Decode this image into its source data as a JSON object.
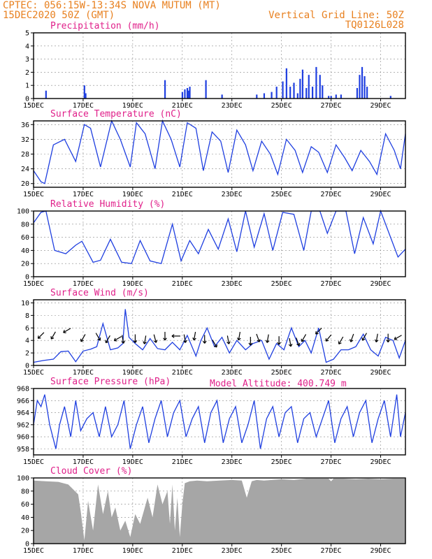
{
  "header": {
    "line1": "CPTEC:   056:15W-13:34S  NOVA MUTUM (MT)",
    "line2": "15DEC2020 50Z (GMT)",
    "grid_note": "Vertical Grid Line: 50Z",
    "code": "TQ0126L028",
    "model_altitude": "Model Altitude: 400.749 m"
  },
  "x_ticks": [
    "15DEC",
    "17DEC",
    "19DEC",
    "21DEC",
    "23DEC",
    "25DEC",
    "27DEC",
    "29DEC"
  ],
  "colors": {
    "line": "#1f3fe0",
    "cloud": "#a6a6a6",
    "title": "#e0208a",
    "header": "#e8801f"
  },
  "chart_data": [
    {
      "type": "bar",
      "title": "Precipitation (mm/h)",
      "x_range_days": [
        0,
        15
      ],
      "ylim": [
        0,
        5
      ],
      "y_ticks": [
        0,
        1,
        2,
        3,
        4,
        5
      ],
      "x": [
        0.5,
        2.05,
        2.1,
        5.3,
        6.0,
        6.1,
        6.2,
        6.25,
        6.3,
        6.95,
        7.6,
        9.0,
        9.3,
        9.6,
        9.8,
        10.05,
        10.2,
        10.35,
        10.5,
        10.65,
        10.75,
        10.85,
        11.0,
        11.1,
        11.25,
        11.4,
        11.55,
        11.65,
        11.9,
        12.0,
        12.2,
        12.4,
        13.05,
        13.15,
        13.25,
        13.35,
        13.45,
        14.4
      ],
      "values": [
        0.6,
        1.0,
        0.4,
        1.4,
        0.5,
        0.7,
        0.8,
        0.6,
        0.9,
        1.4,
        0.3,
        0.3,
        0.4,
        0.5,
        0.9,
        1.3,
        2.3,
        0.9,
        1.2,
        0.4,
        1.5,
        2.2,
        0.8,
        1.8,
        0.9,
        2.4,
        1.8,
        1.0,
        0.2,
        0.2,
        0.3,
        0.3,
        0.8,
        1.8,
        2.4,
        1.7,
        0.9,
        0.2
      ]
    },
    {
      "type": "line",
      "title": "Surface Temperature (nC)",
      "x_range_days": [
        0,
        15
      ],
      "ylim": [
        19,
        37
      ],
      "y_ticks": [
        20,
        24,
        28,
        32,
        36
      ],
      "x": [
        0,
        0.3,
        0.45,
        0.8,
        1.25,
        1.7,
        2.05,
        2.3,
        2.7,
        3.15,
        3.5,
        3.9,
        4.15,
        4.5,
        4.9,
        5.2,
        5.55,
        5.9,
        6.2,
        6.55,
        6.85,
        7.2,
        7.55,
        7.85,
        8.2,
        8.55,
        8.85,
        9.2,
        9.55,
        9.85,
        10.2,
        10.55,
        10.85,
        11.2,
        11.5,
        11.85,
        12.2,
        12.55,
        12.85,
        13.2,
        13.55,
        13.85,
        14.2,
        14.55,
        14.8,
        15
      ],
      "values": [
        23.5,
        20.5,
        20.0,
        30.5,
        32.0,
        26.0,
        36.0,
        35.0,
        24.5,
        37.0,
        32.0,
        24.5,
        36.5,
        33.5,
        24.0,
        37.0,
        32.0,
        24.5,
        36.5,
        35.0,
        23.5,
        34.0,
        31.5,
        23.0,
        34.5,
        30.5,
        23.5,
        31.5,
        28.0,
        22.5,
        32.0,
        29.0,
        23.0,
        30.0,
        28.5,
        23.0,
        30.5,
        27.0,
        23.5,
        29.0,
        26.0,
        22.5,
        33.5,
        29.0,
        24.0,
        33.5
      ]
    },
    {
      "type": "line",
      "title": "Relative Humidity (%)",
      "x_range_days": [
        0,
        15
      ],
      "ylim": [
        0,
        100
      ],
      "y_ticks": [
        0,
        20,
        40,
        60,
        80,
        100
      ],
      "x": [
        0,
        0.3,
        0.5,
        0.85,
        1.3,
        1.7,
        1.95,
        2.4,
        2.7,
        3.1,
        3.55,
        3.95,
        4.3,
        4.7,
        5.15,
        5.6,
        5.95,
        6.3,
        6.65,
        7.05,
        7.45,
        7.85,
        8.2,
        8.55,
        8.9,
        9.3,
        9.65,
        10.05,
        10.5,
        10.9,
        11.2,
        11.55,
        11.85,
        12.2,
        12.6,
        12.95,
        13.3,
        13.7,
        14.0,
        14.4,
        14.7,
        15
      ],
      "values": [
        82,
        98,
        100,
        40,
        35,
        48,
        54,
        22,
        25,
        57,
        22,
        20,
        55,
        24,
        20,
        80,
        24,
        55,
        35,
        72,
        42,
        88,
        38,
        100,
        45,
        96,
        40,
        98,
        95,
        40,
        100,
        100,
        66,
        100,
        100,
        35,
        90,
        50,
        100,
        60,
        30,
        42
      ]
    },
    {
      "type": "line",
      "title": "Surface Wind (m/s)",
      "x_range_days": [
        0,
        15
      ],
      "ylim": [
        0,
        10.5
      ],
      "y_ticks": [
        0,
        2,
        4,
        6,
        8,
        10
      ],
      "x": [
        0,
        0.4,
        0.8,
        1.1,
        1.4,
        1.7,
        2.0,
        2.3,
        2.55,
        2.8,
        3.1,
        3.4,
        3.6,
        3.7,
        3.85,
        4.1,
        4.4,
        4.7,
        5.0,
        5.3,
        5.6,
        5.9,
        6.2,
        6.55,
        6.75,
        7.0,
        7.3,
        7.6,
        7.9,
        8.2,
        8.55,
        8.85,
        9.2,
        9.5,
        9.8,
        10.1,
        10.4,
        10.7,
        10.95,
        11.2,
        11.5,
        11.8,
        12.1,
        12.4,
        12.7,
        13.0,
        13.3,
        13.6,
        13.9,
        14.2,
        14.5,
        14.75,
        15
      ],
      "values": [
        0.5,
        0.8,
        1.0,
        2.2,
        2.3,
        0.6,
        2.3,
        2.6,
        3.0,
        6.7,
        2.5,
        2.8,
        3.5,
        9.0,
        4.5,
        3.5,
        2.5,
        4.3,
        2.7,
        2.5,
        3.7,
        2.5,
        4.8,
        1.5,
        4.0,
        6.0,
        3.0,
        4.5,
        2.0,
        4.0,
        2.5,
        3.5,
        4.0,
        1.0,
        3.5,
        2.5,
        6.0,
        3.0,
        4.0,
        2.0,
        6.0,
        0.5,
        1.0,
        2.5,
        2.5,
        3.0,
        5.0,
        2.5,
        1.5,
        4.5,
        4.0,
        1.2,
        4.0
      ],
      "arrows_x": [
        0.3,
        0.8,
        1.35,
        2.0,
        2.6,
        3.0,
        3.4,
        3.6,
        4.1,
        4.5,
        4.9,
        5.3,
        5.75,
        6.1,
        6.5,
        6.9,
        7.3,
        7.85,
        8.3,
        8.75,
        9.05,
        9.45,
        9.9,
        10.35,
        10.65,
        10.9,
        11.5,
        11.9,
        12.4,
        12.85,
        13.35,
        13.85,
        14.3,
        14.7
      ],
      "arrows_y": [
        4.8,
        4.8,
        5.6,
        4.4,
        4.6,
        4.2,
        4.3,
        4.2,
        4.3,
        4.1,
        4.3,
        4.7,
        4.7,
        4.3,
        4.7,
        4.2,
        3.5,
        4.1,
        4.7,
        3.9,
        4.4,
        4.3,
        4.0,
        3.7,
        3.8,
        4.4,
        5.5,
        4.4,
        4.0,
        4.4,
        4.6,
        4.4,
        4.4,
        4.5
      ],
      "arrows_deg": [
        135,
        120,
        150,
        120,
        60,
        120,
        150,
        80,
        90,
        100,
        75,
        90,
        180,
        80,
        100,
        90,
        60,
        80,
        100,
        90,
        70,
        100,
        90,
        80,
        70,
        120,
        135,
        130,
        120,
        110,
        120,
        100,
        90,
        150
      ]
    },
    {
      "type": "line",
      "title": "Surface Pressure (hPa)",
      "x_range_days": [
        0,
        15
      ],
      "ylim": [
        957,
        968
      ],
      "y_ticks": [
        958,
        960,
        962,
        964,
        966,
        968
      ],
      "x": [
        0,
        0.15,
        0.3,
        0.45,
        0.65,
        0.9,
        1.05,
        1.25,
        1.5,
        1.7,
        1.9,
        2.15,
        2.4,
        2.65,
        2.9,
        3.15,
        3.4,
        3.65,
        3.9,
        4.15,
        4.4,
        4.65,
        4.9,
        5.15,
        5.4,
        5.65,
        5.9,
        6.15,
        6.4,
        6.65,
        6.9,
        7.15,
        7.4,
        7.65,
        7.9,
        8.15,
        8.4,
        8.65,
        8.9,
        9.15,
        9.4,
        9.65,
        9.9,
        10.15,
        10.4,
        10.65,
        10.9,
        11.15,
        11.4,
        11.65,
        11.9,
        12.15,
        12.4,
        12.65,
        12.9,
        13.15,
        13.4,
        13.65,
        13.9,
        14.15,
        14.4,
        14.65,
        14.8,
        15
      ],
      "values": [
        962,
        966,
        965,
        967,
        962,
        958,
        962,
        965,
        960,
        966,
        961,
        963,
        964,
        960,
        965,
        960,
        962,
        966,
        958,
        962,
        965,
        959,
        963,
        966,
        960,
        964,
        966,
        960,
        963,
        965,
        959,
        964,
        966,
        959,
        963,
        965,
        959,
        962,
        966,
        958,
        963,
        965,
        960,
        964,
        965,
        959,
        963,
        964,
        960,
        963,
        966,
        959,
        963,
        965,
        960,
        964,
        966,
        959,
        963,
        966,
        960,
        967,
        960,
        964
      ]
    },
    {
      "type": "area",
      "title": "Cloud Cover (%)",
      "x_range_days": [
        0,
        15
      ],
      "ylim": [
        0,
        100
      ],
      "y_ticks": [
        0,
        20,
        40,
        60,
        80,
        100
      ],
      "x": [
        0,
        0.5,
        1.0,
        1.4,
        1.8,
        1.9,
        2.05,
        2.2,
        2.4,
        2.6,
        2.8,
        3.0,
        3.15,
        3.3,
        3.5,
        3.7,
        3.9,
        4.1,
        4.3,
        4.6,
        4.8,
        5.0,
        5.2,
        5.4,
        5.5,
        5.6,
        5.7,
        5.8,
        5.9,
        6.0,
        6.1,
        6.3,
        6.6,
        7.0,
        7.5,
        8.0,
        8.4,
        8.6,
        8.8,
        9.0,
        9.3,
        9.6,
        10.0,
        10.5,
        11.0,
        11.5,
        11.9,
        12.0,
        12.1,
        12.5,
        13.0,
        13.5,
        14.0,
        14.5,
        15
      ],
      "values": [
        96,
        95,
        94,
        90,
        75,
        50,
        5,
        65,
        20,
        90,
        45,
        80,
        40,
        55,
        20,
        35,
        10,
        45,
        30,
        70,
        40,
        90,
        60,
        80,
        30,
        90,
        20,
        70,
        10,
        60,
        92,
        95,
        96,
        95,
        96,
        97,
        96,
        70,
        95,
        97,
        96,
        97,
        98,
        97,
        99,
        99,
        99,
        95,
        99,
        99,
        98,
        99,
        98,
        99,
        99
      ]
    }
  ]
}
